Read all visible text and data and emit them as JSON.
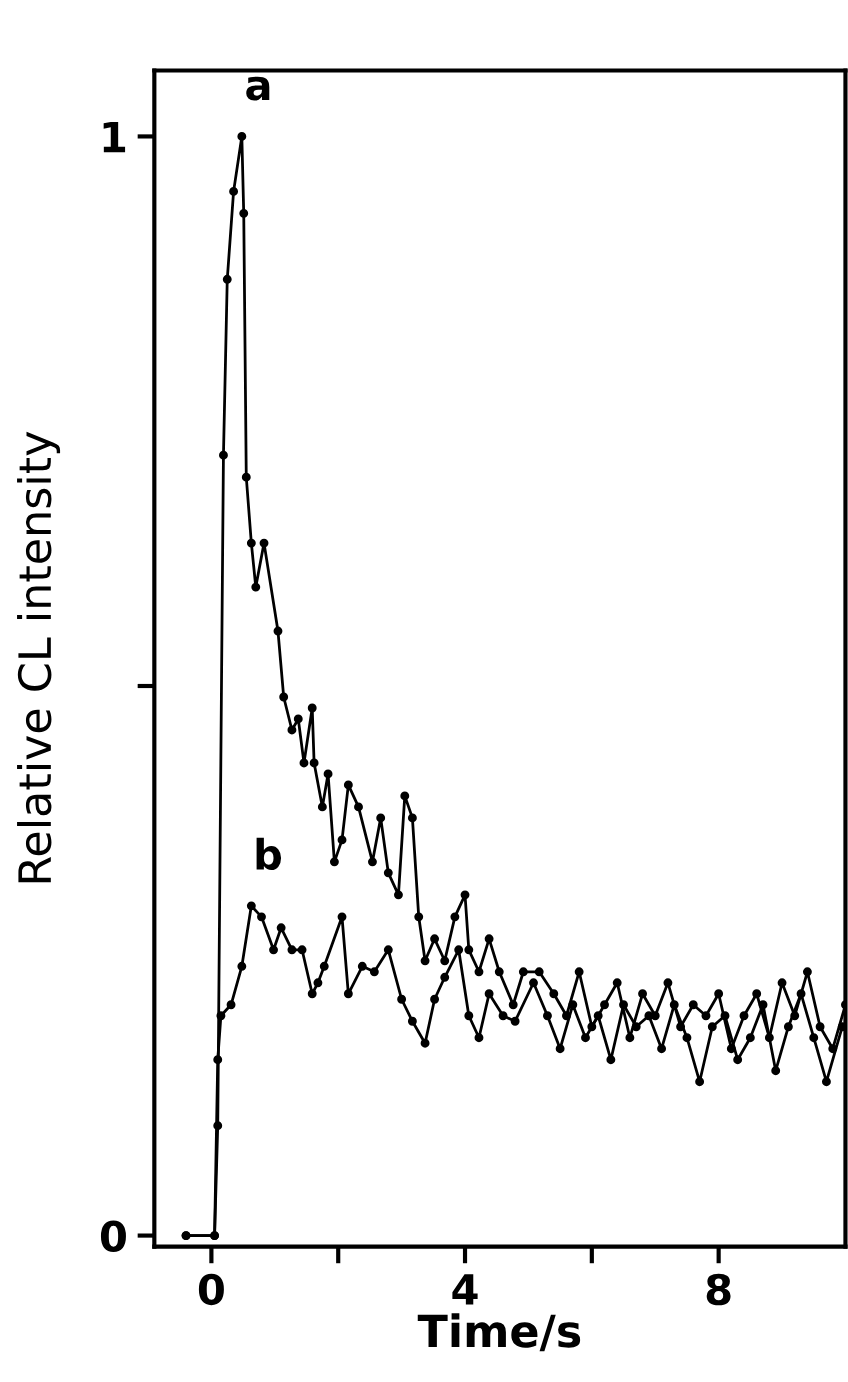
{
  "chart_data": {
    "type": "line",
    "xlabel": "Time/s",
    "ylabel": "Relative CL intensity",
    "xlim": [
      -0.9,
      10.0
    ],
    "ylim": [
      -0.01,
      1.06
    ],
    "xticks": [
      0,
      {
        "value": 2,
        "label": null
      },
      4,
      {
        "value": 6,
        "label": null
      },
      8
    ],
    "yticks": [
      0,
      {
        "value": 0.5,
        "label": null
      },
      1
    ],
    "grid": false,
    "legend": false,
    "marker": "circle",
    "line_style": "solid",
    "annotations": [
      "a",
      "b"
    ],
    "series": [
      {
        "color": "#000000",
        "x": [
          -0.4,
          0.05,
          0.1,
          0.19,
          0.25,
          0.35,
          0.48,
          0.51,
          0.55,
          0.63,
          0.7,
          0.83,
          1.05,
          1.14,
          1.27,
          1.37,
          1.46,
          1.59,
          1.62,
          1.75,
          1.84,
          1.94,
          2.06,
          2.16,
          2.32,
          2.54,
          2.67,
          2.79,
          2.95,
          3.05,
          3.17,
          3.27,
          3.37,
          3.52,
          3.68,
          3.84,
          4.0,
          4.06,
          4.22,
          4.38,
          4.54,
          4.76,
          4.92,
          5.17,
          5.4,
          5.6,
          5.8,
          6.0,
          6.2,
          6.4,
          6.6,
          6.8,
          7.0,
          7.2,
          7.4,
          7.6,
          7.8,
          8.0,
          8.2,
          8.4,
          8.6,
          8.8,
          9.0,
          9.2,
          9.4,
          9.6,
          9.8,
          10.0
        ],
        "values": [
          0,
          0,
          0.1,
          0.71,
          0.87,
          0.95,
          1.0,
          0.93,
          0.69,
          0.63,
          0.59,
          0.63,
          0.55,
          0.49,
          0.46,
          0.47,
          0.43,
          0.48,
          0.43,
          0.39,
          0.42,
          0.34,
          0.36,
          0.41,
          0.39,
          0.34,
          0.38,
          0.33,
          0.31,
          0.4,
          0.38,
          0.29,
          0.25,
          0.27,
          0.25,
          0.29,
          0.31,
          0.26,
          0.24,
          0.27,
          0.24,
          0.21,
          0.24,
          0.24,
          0.22,
          0.2,
          0.24,
          0.19,
          0.21,
          0.23,
          0.18,
          0.22,
          0.2,
          0.23,
          0.19,
          0.21,
          0.2,
          0.22,
          0.17,
          0.2,
          0.22,
          0.18,
          0.23,
          0.2,
          0.24,
          0.19,
          0.17,
          0.21
        ]
      },
      {
        "color": "#000000",
        "x": [
          -0.4,
          0.05,
          0.1,
          0.15,
          0.31,
          0.48,
          0.63,
          0.79,
          0.98,
          1.1,
          1.27,
          1.43,
          1.59,
          1.68,
          1.78,
          2.06,
          2.16,
          2.38,
          2.57,
          2.79,
          3.0,
          3.17,
          3.37,
          3.52,
          3.68,
          3.9,
          4.06,
          4.22,
          4.38,
          4.6,
          4.79,
          5.08,
          5.3,
          5.5,
          5.7,
          5.9,
          6.1,
          6.3,
          6.5,
          6.7,
          6.9,
          7.1,
          7.3,
          7.5,
          7.7,
          7.9,
          8.1,
          8.3,
          8.5,
          8.7,
          8.9,
          9.1,
          9.3,
          9.5,
          9.7,
          9.95
        ],
        "values": [
          0,
          0,
          0.16,
          0.2,
          0.21,
          0.245,
          0.3,
          0.29,
          0.26,
          0.28,
          0.26,
          0.26,
          0.22,
          0.23,
          0.245,
          0.29,
          0.22,
          0.245,
          0.24,
          0.26,
          0.215,
          0.195,
          0.175,
          0.215,
          0.235,
          0.26,
          0.2,
          0.18,
          0.22,
          0.2,
          0.195,
          0.23,
          0.2,
          0.17,
          0.21,
          0.18,
          0.2,
          0.16,
          0.21,
          0.19,
          0.2,
          0.17,
          0.21,
          0.18,
          0.14,
          0.19,
          0.2,
          0.16,
          0.18,
          0.21,
          0.15,
          0.19,
          0.22,
          0.18,
          0.14,
          0.19
        ]
      }
    ]
  }
}
